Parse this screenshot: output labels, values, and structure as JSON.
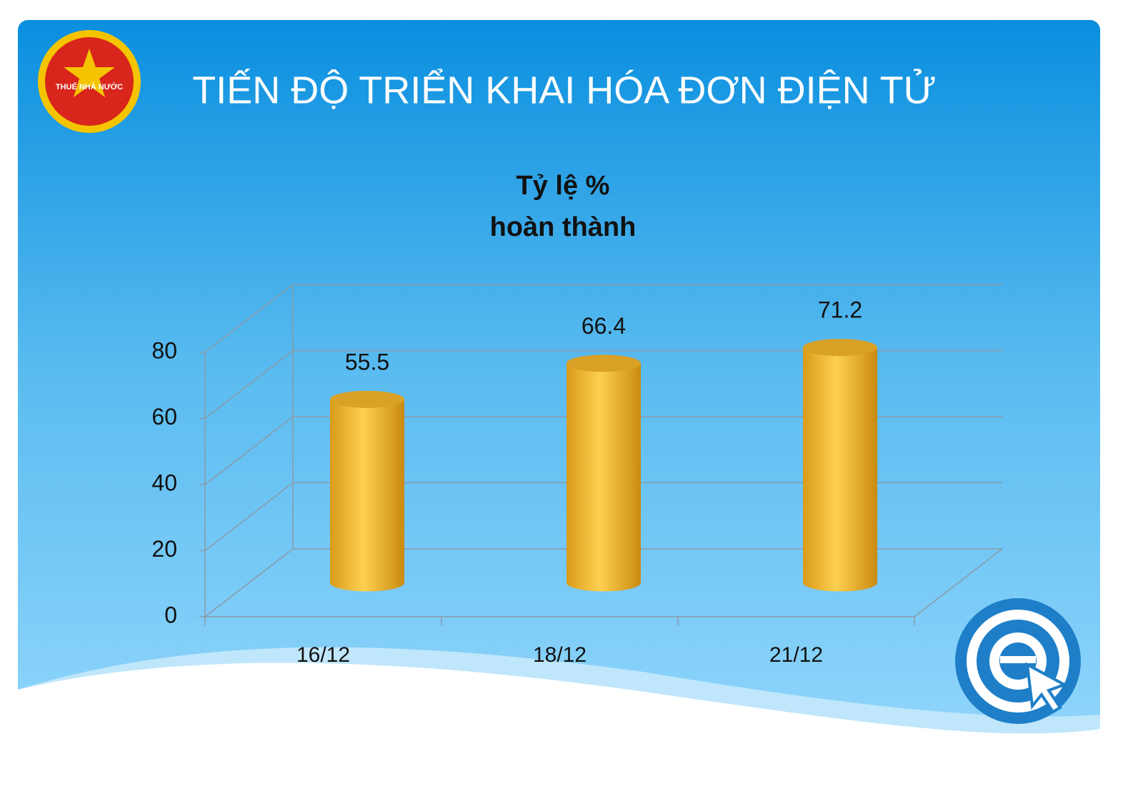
{
  "slide_title": "TIẾN ĐỘ TRIỂN KHAI HÓA ĐƠN ĐIỆN TỬ",
  "logo_text": "THUẾ NHÀ NƯỚC",
  "chart_data": {
    "type": "bar",
    "title": [
      "Tỷ lệ %",
      "hoàn thành"
    ],
    "categories": [
      "16/12",
      "18/12",
      "21/12"
    ],
    "values": [
      55.5,
      66.4,
      71.2
    ],
    "color": "#f5b82e",
    "ylim": [
      0,
      80
    ],
    "yticks": [
      0,
      20,
      40,
      60,
      80
    ],
    "grid": true
  }
}
